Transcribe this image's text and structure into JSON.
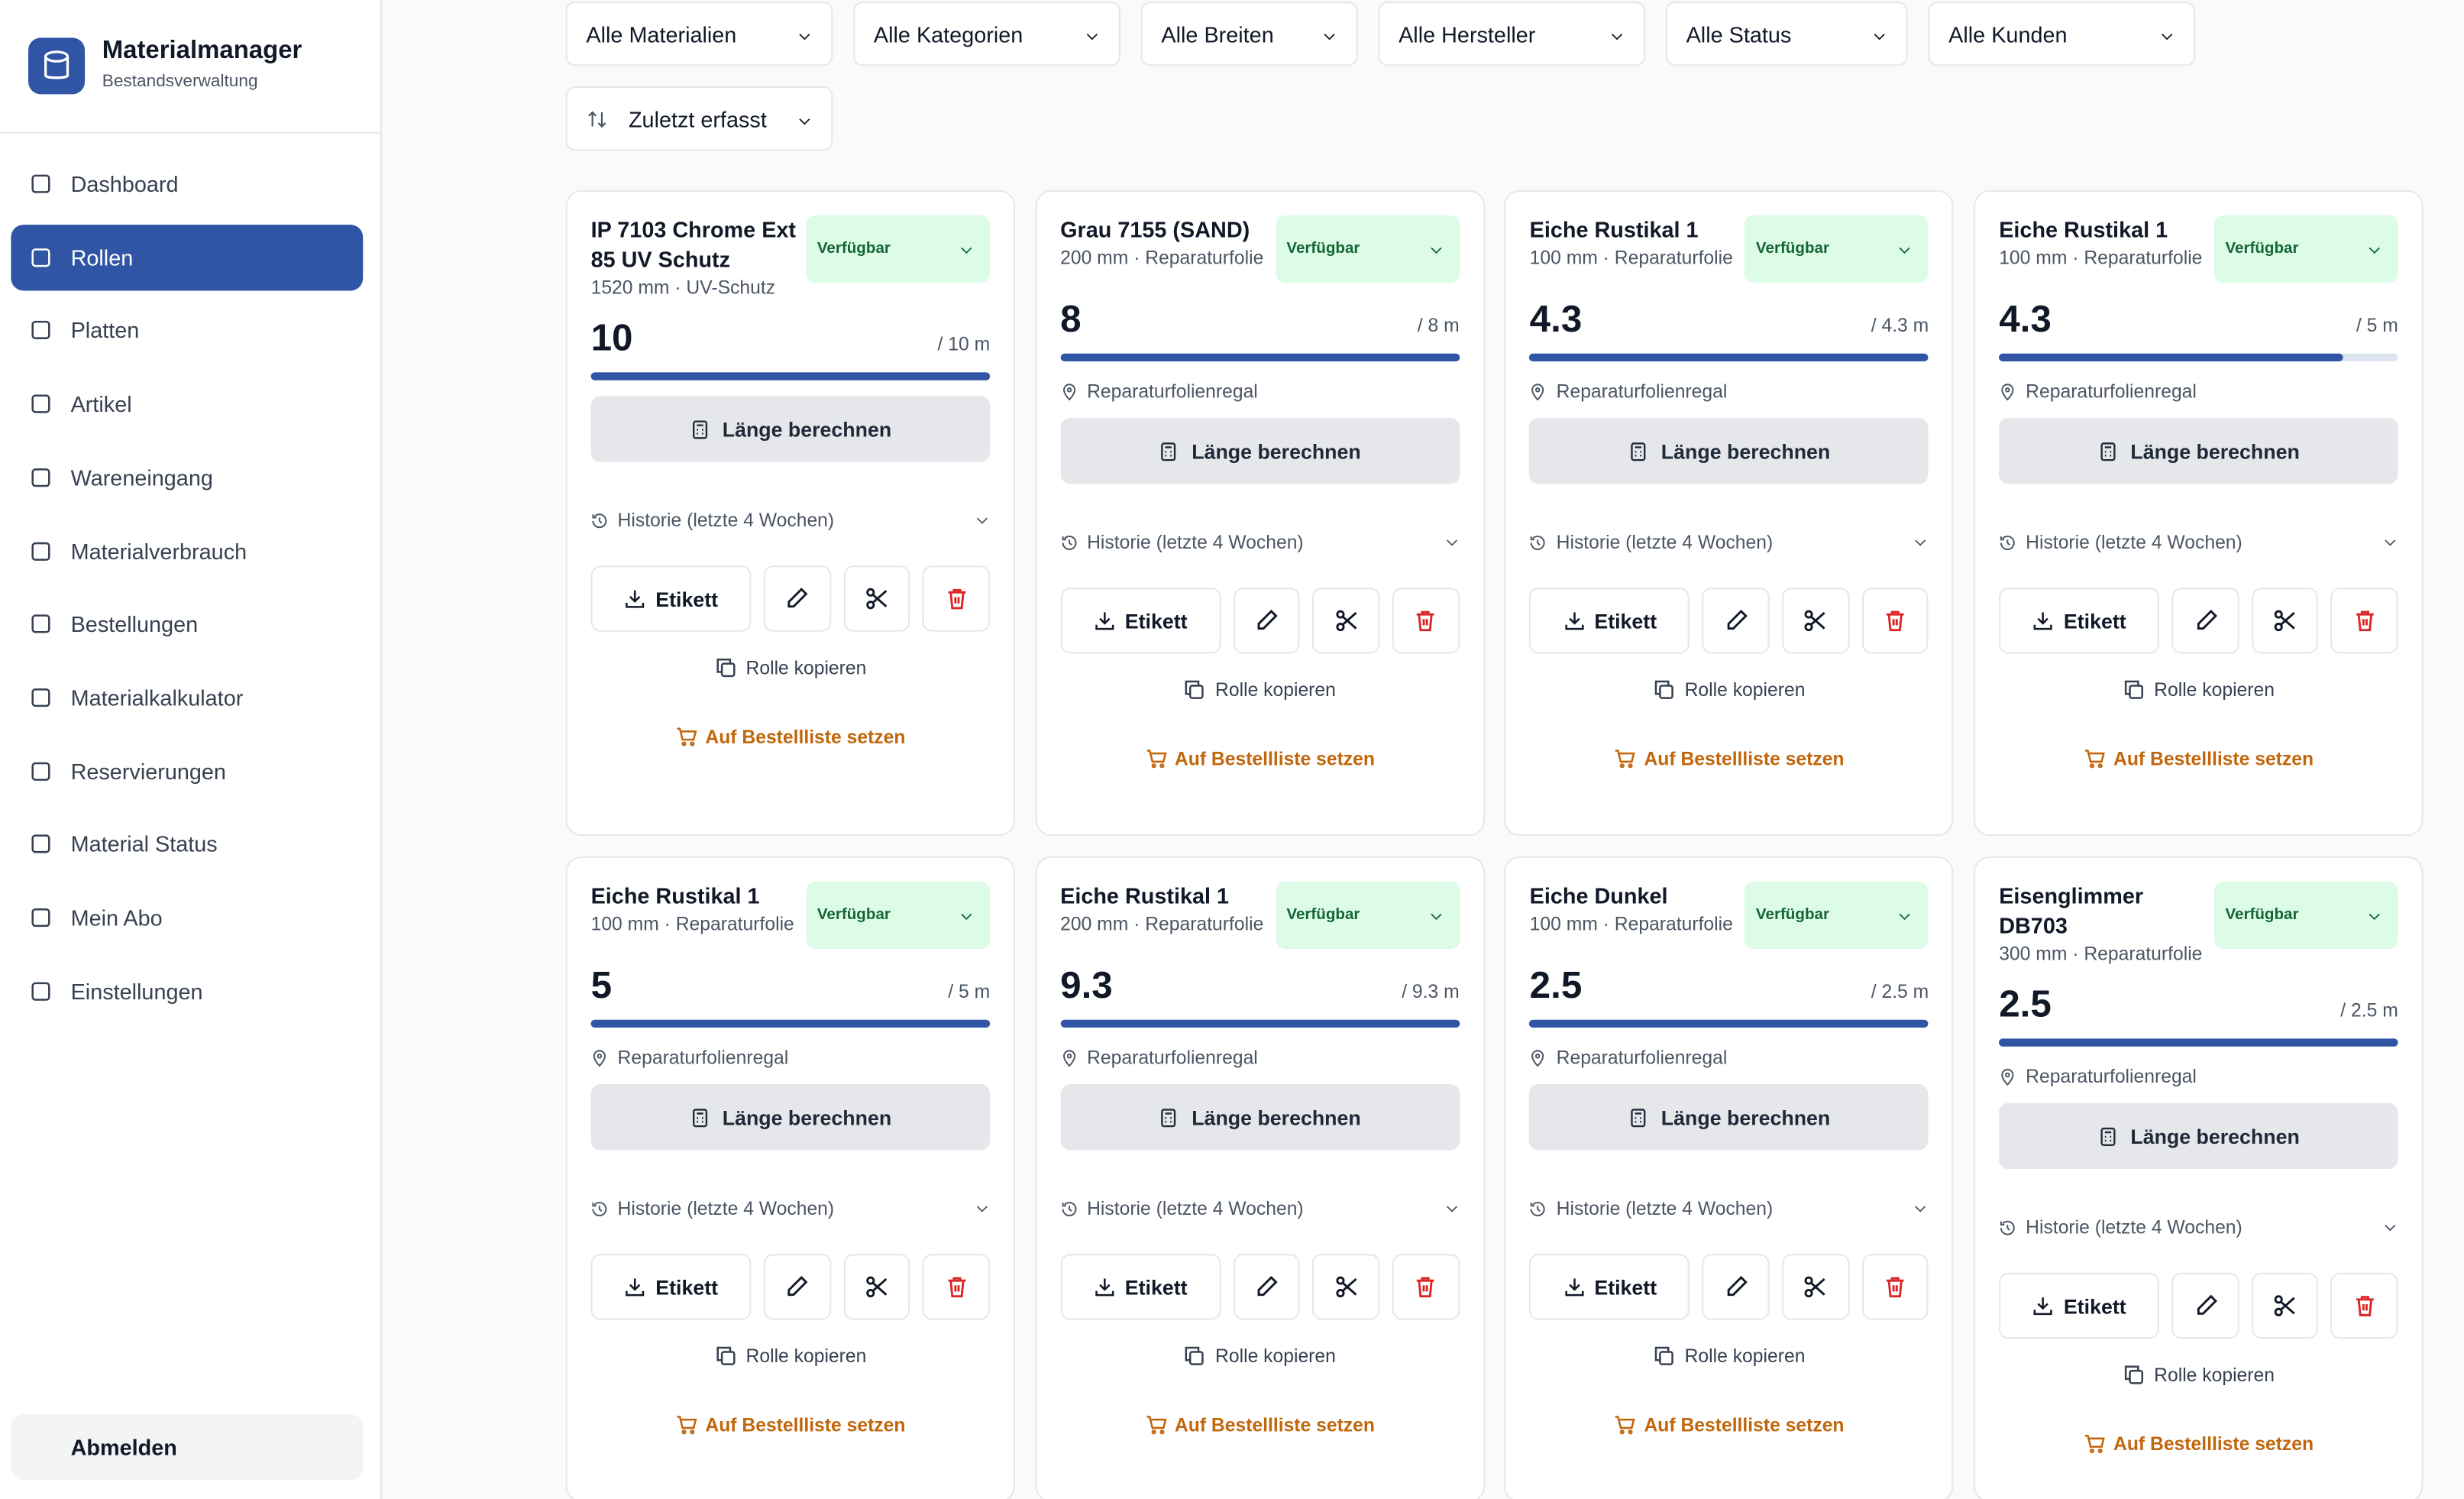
{
  "sidebar": {
    "brand": {
      "title": "Materialmanager",
      "subtitle": "Bestandsverwaltung"
    },
    "nav": [
      "Dashboard",
      "Rollen",
      "Platten",
      "Artikel",
      "Wareneingang",
      "Materialverbrauch",
      "Bestellungen",
      "Materialkalkulator",
      "Reservierungen",
      "Material Status",
      "Mein Abo",
      "Einstellungen"
    ],
    "active": 1,
    "logout": "Abmelden"
  },
  "filters": [
    "Alle Materialien",
    "Alle Kategorien",
    "Alle Breiten",
    "Alle Hersteller",
    "Alle Status",
    "Alle Kunden"
  ],
  "sort": "Zuletzt erfasst",
  "card_labels": {
    "calculate": "Länge berechnen",
    "history": "Historie (letzte 4 Wochen)",
    "label": "Etikett",
    "copy": "Rolle kopieren",
    "order": "Auf Bestellliste setzen"
  },
  "cards": [
    {
      "title": "IP 7103 Chrome Ext 85 UV Schutz",
      "subtitle": "1520 mm · UV-Schutz",
      "status": "Verfügbar",
      "quantity": 10,
      "capacity": 10,
      "capacity_label": "/ 10 m"
    },
    {
      "title": "Grau 7155 (SAND)",
      "subtitle": "200 mm · Reparaturfolie",
      "status": "Verfügbar",
      "quantity": 8,
      "capacity": 8,
      "capacity_label": "/ 8 m",
      "location": "Reparaturfolienregal"
    },
    {
      "title": "Eiche Rustikal 1",
      "subtitle": "100 mm · Reparaturfolie",
      "status": "Verfügbar",
      "quantity": 4.3,
      "capacity": 4.3,
      "capacity_label": "/ 4.3 m",
      "location": "Reparaturfolienregal"
    },
    {
      "title": "Eiche Rustikal 1",
      "subtitle": "100 mm · Reparaturfolie",
      "status": "Verfügbar",
      "quantity": 4.3,
      "capacity": 5,
      "capacity_label": "/ 5 m",
      "location": "Reparaturfolienregal"
    },
    {
      "title": "Eiche Rustikal 1",
      "subtitle": "100 mm · Reparaturfolie",
      "status": "Verfügbar",
      "quantity": 5,
      "capacity": 5,
      "capacity_label": "/ 5 m",
      "location": "Reparaturfolienregal"
    },
    {
      "title": "Eiche Rustikal 1",
      "subtitle": "200 mm · Reparaturfolie",
      "status": "Verfügbar",
      "quantity": 9.3,
      "capacity": 9.3,
      "capacity_label": "/ 9.3 m",
      "location": "Reparaturfolienregal"
    },
    {
      "title": "Eiche Dunkel",
      "subtitle": "100 mm · Reparaturfolie",
      "status": "Verfügbar",
      "quantity": 2.5,
      "capacity": 2.5,
      "capacity_label": "/ 2.5 m",
      "location": "Reparaturfolienregal"
    },
    {
      "title": "Eisenglimmer DB703",
      "subtitle": "300 mm · Reparaturfolie",
      "status": "Verfügbar",
      "quantity": 2.5,
      "capacity": 2.5,
      "capacity_label": "/ 2.5 m",
      "location": "Reparaturfolienregal"
    }
  ]
}
